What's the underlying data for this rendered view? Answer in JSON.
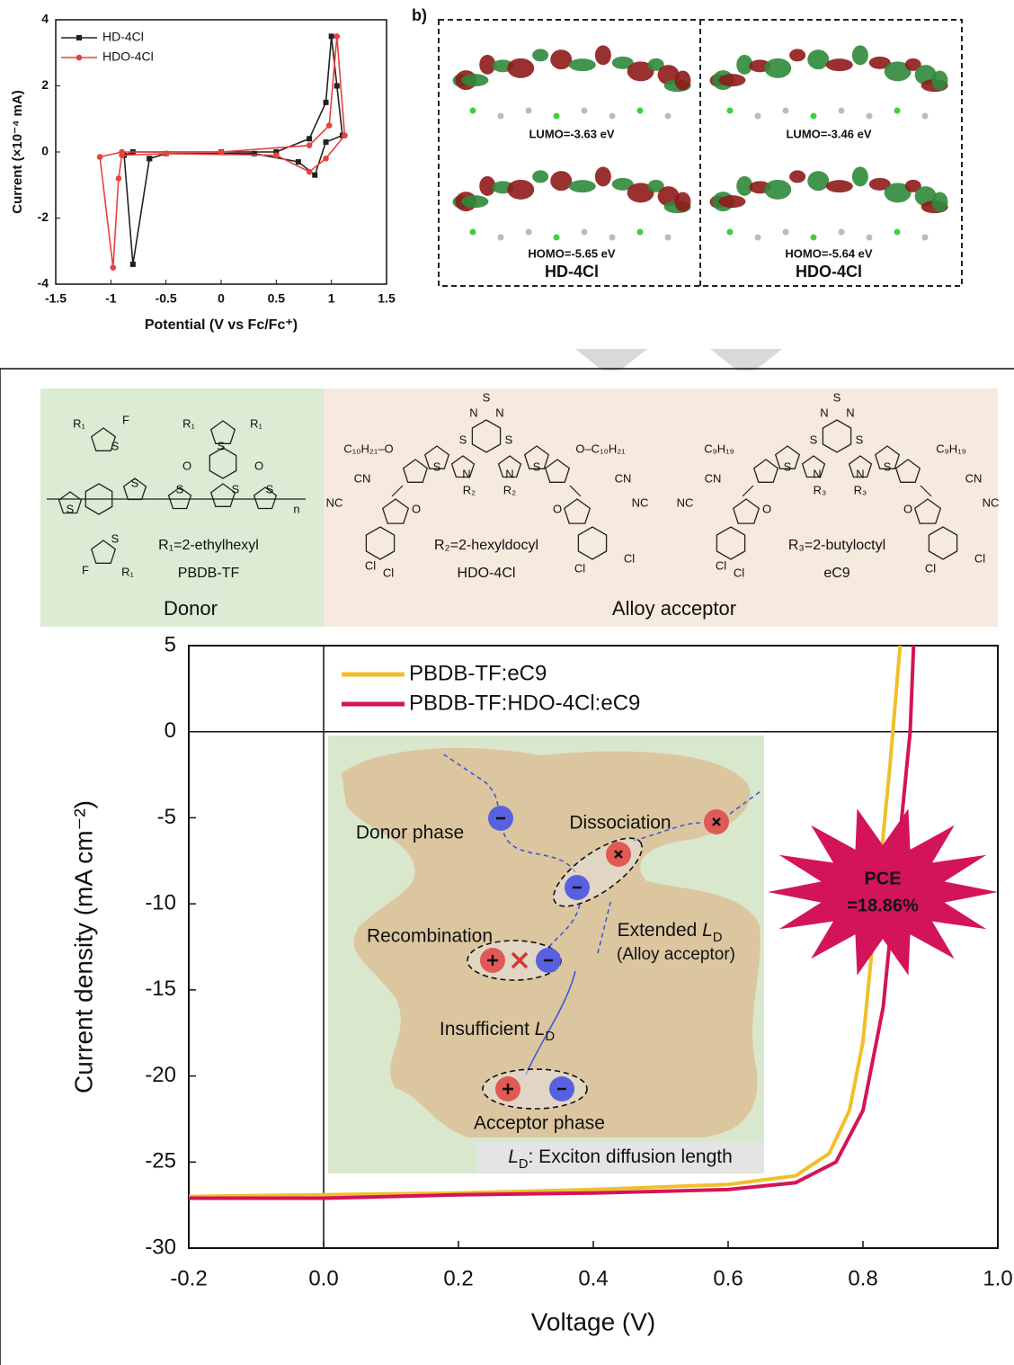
{
  "chart_data": [
    {
      "type": "line",
      "xlabel": "Potential (V vs Fc/Fc⁺)",
      "ylabel": "Current (×10⁻⁴ mA)",
      "xlim": [
        -1.5,
        1.5
      ],
      "xticks": [
        -1.5,
        -1,
        -0.5,
        0,
        0.5,
        1,
        1.5
      ],
      "ylim": [
        -4,
        4
      ],
      "yticks": [
        -4,
        -2,
        0,
        2,
        4
      ],
      "legend": "upper left",
      "series": [
        {
          "name": "HD-4Cl",
          "color": "#222222",
          "marker": "square",
          "x": [
            -0.65,
            -0.8,
            -0.88,
            -0.8,
            0,
            0.5,
            0.8,
            0.95,
            1.0,
            1.05,
            1.1,
            0.95,
            0.85,
            0.7,
            0.3,
            -0.5,
            -0.65
          ],
          "values": [
            -0.2,
            -3.4,
            -0.1,
            0,
            0,
            0,
            0.4,
            1.5,
            3.5,
            2.0,
            0.5,
            0.3,
            -0.7,
            -0.3,
            -0.05,
            -0.05,
            -0.2
          ]
        },
        {
          "name": "HDO-4Cl",
          "color": "#e8413c",
          "marker": "circle",
          "x": [
            1.12,
            1.05,
            0.98,
            0.8,
            0,
            -0.9,
            -1.1,
            -0.98,
            -0.93,
            -0.9,
            -0.5,
            0.5,
            0.8,
            0.95,
            1.12
          ],
          "values": [
            0.5,
            3.5,
            0.8,
            0.2,
            0,
            0,
            -0.15,
            -3.5,
            -0.8,
            -0.1,
            -0.05,
            -0.1,
            -0.6,
            -0.2,
            0.5
          ]
        }
      ]
    },
    {
      "type": "line",
      "xlabel": "Voltage (V)",
      "ylabel": "Current density (mA cm⁻²)",
      "xlim": [
        -0.2,
        1.0
      ],
      "xticks": [
        -0.2,
        {
          "value": 0,
          "label": "0.0"
        },
        0.2,
        0.4,
        0.6,
        0.8,
        {
          "value": 1,
          "label": "1.0"
        }
      ],
      "ylim": [
        -30,
        5
      ],
      "yticks": [
        -30,
        -25,
        -20,
        -15,
        -10,
        -5,
        0,
        5
      ],
      "legend": "upper left",
      "annotations": [
        "PCE",
        "=18.86%"
      ],
      "series": [
        {
          "name": "PBDB-TF:eC9",
          "color": "#f0bf2a",
          "x": [
            -0.2,
            0,
            0.2,
            0.4,
            0.6,
            0.7,
            0.75,
            0.78,
            0.8,
            0.82,
            0.84,
            0.855
          ],
          "values": [
            -27,
            -26.9,
            -26.8,
            -26.6,
            -26.3,
            -25.8,
            -24.5,
            -22,
            -18,
            -10,
            -2,
            5
          ]
        },
        {
          "name": "PBDB-TF:HDO-4Cl:eC9",
          "color": "#d4145a",
          "x": [
            -0.2,
            0,
            0.2,
            0.4,
            0.6,
            0.7,
            0.76,
            0.8,
            0.83,
            0.85,
            0.87,
            0.875
          ],
          "values": [
            -27.1,
            -27.1,
            -26.9,
            -26.8,
            -26.6,
            -26.2,
            -25,
            -22,
            -16,
            -8,
            0,
            5
          ]
        }
      ]
    }
  ],
  "panel_b": {
    "label": "b)",
    "molecules": [
      {
        "name": "HD-4Cl",
        "lumo": "LUMO=-3.63 eV",
        "homo": "HOMO=-5.65 eV"
      },
      {
        "name": "HDO-4Cl",
        "lumo": "LUMO=-3.46 eV",
        "homo": "HOMO=-5.64 eV"
      }
    ]
  },
  "structures": {
    "donor": {
      "label": "Donor",
      "name": "PBDB-TF",
      "substituent": "R₁=2-ethylhexyl",
      "atoms": [
        "R₁",
        "F",
        "S",
        "R₁",
        "R₁",
        "S",
        "O",
        "O",
        "S",
        "S",
        "S",
        "S",
        "S",
        "S",
        "F",
        "R₁",
        "n"
      ]
    },
    "acceptor": {
      "label": "Alloy acceptor",
      "molecules": [
        {
          "name": "HDO-4Cl",
          "substituent": "R₂=2-hexyldocyl",
          "atoms": [
            "N",
            "S",
            "N",
            "C₁₀H₂₁–O",
            "O–C₁₀H₂₁",
            "S",
            "S",
            "S",
            "S",
            "N",
            "N",
            "R₂",
            "R₂",
            "CN",
            "NC",
            "CN",
            "NC",
            "O",
            "O",
            "Cl",
            "Cl",
            "Cl",
            "Cl"
          ]
        },
        {
          "name": "eC9",
          "substituent": "R₃=2-butyloctyl",
          "atoms": [
            "N",
            "S",
            "N",
            "C₉H₁₉",
            "C₉H₁₉",
            "S",
            "S",
            "S",
            "S",
            "N",
            "N",
            "R₃",
            "R₃",
            "CN",
            "NC",
            "CN",
            "NC",
            "O",
            "O",
            "Cl",
            "Cl",
            "Cl",
            "Cl"
          ]
        }
      ]
    }
  },
  "inset": {
    "donor_phase": "Donor phase",
    "dissociation": "Dissociation",
    "recombination": "Recombination",
    "extended": [
      "Extended ",
      "L",
      "D"
    ],
    "alloy": "(Alloy acceptor)",
    "insufficient": [
      "Insufficient ",
      "L",
      "D"
    ],
    "acceptor_phase": "Acceptor phase",
    "ld_note": [
      "L",
      "D",
      ": Exciton diffusion length"
    ]
  }
}
